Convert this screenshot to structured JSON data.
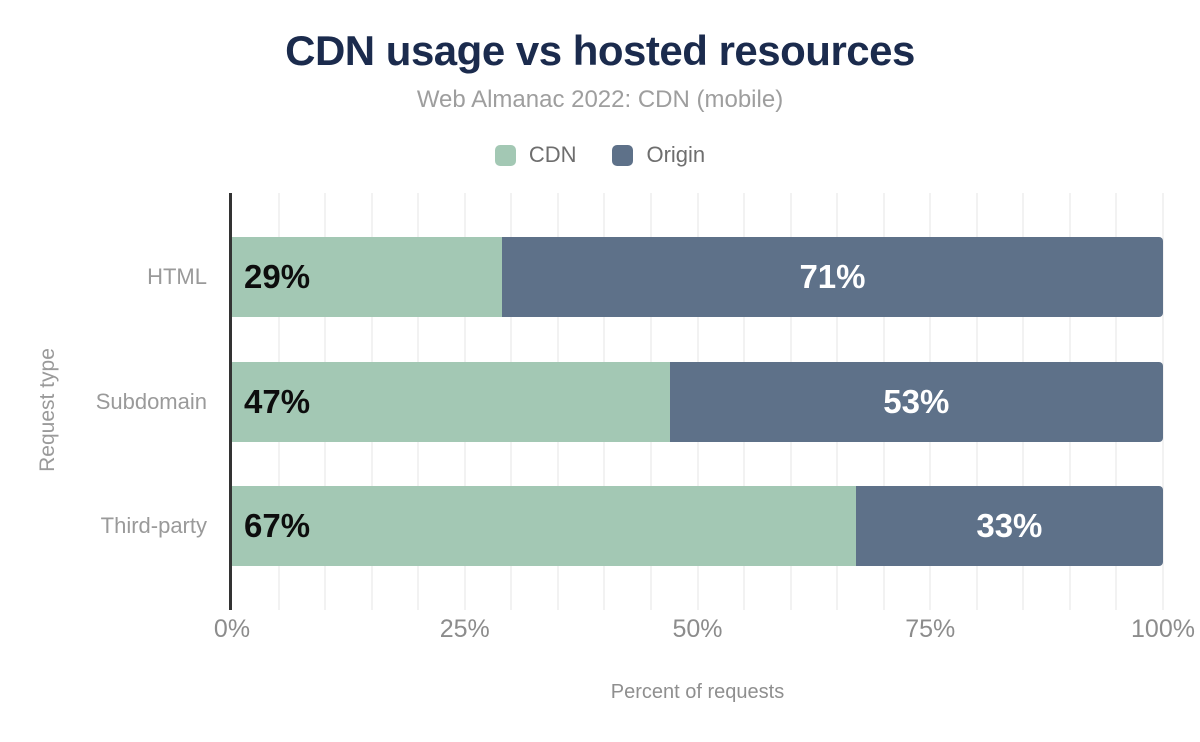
{
  "header": {
    "title": "CDN usage vs hosted resources",
    "subtitle": "Web Almanac 2022: CDN (mobile)"
  },
  "legend": {
    "position": "top",
    "items": [
      {
        "id": "cdn",
        "label": "CDN",
        "color": "#a3c8b4"
      },
      {
        "id": "origin",
        "label": "Origin",
        "color": "#5e7189"
      }
    ]
  },
  "chart_data": {
    "type": "bar",
    "orientation": "horizontal",
    "stacked": true,
    "title": "CDN usage vs hosted resources",
    "subtitle": "Web Almanac 2022: CDN (mobile)",
    "categories": [
      "HTML",
      "Subdomain",
      "Third-party"
    ],
    "series": [
      {
        "name": "CDN",
        "color": "#a3c8b4",
        "values": [
          29,
          47,
          67
        ],
        "labels": [
          "29%",
          "47%",
          "67%"
        ],
        "label_color": "#0d0d0d",
        "label_align": "left"
      },
      {
        "name": "Origin",
        "color": "#5e7189",
        "values": [
          71,
          53,
          33
        ],
        "labels": [
          "71%",
          "53%",
          "33%"
        ],
        "label_color": "#ffffff",
        "label_align": "center"
      }
    ],
    "xlabel": "Percent of requests",
    "ylabel": "Request type",
    "xlim": [
      0,
      100
    ],
    "x_ticks": [
      {
        "value": 0,
        "label": "0%"
      },
      {
        "value": 25,
        "label": "25%"
      },
      {
        "value": 50,
        "label": "50%"
      },
      {
        "value": 75,
        "label": "75%"
      },
      {
        "value": 100,
        "label": "100%"
      }
    ],
    "grid": {
      "show": true,
      "minor_step": 5,
      "color": "#f2f2f2"
    }
  },
  "colors": {
    "title": "#1b2b4d",
    "subtitle": "#9e9e9e",
    "axis_line": "#333333",
    "gridline": "#f2f2f2",
    "category_label": "#9a9a9a",
    "tick_label": "#8c8c8c",
    "axis_title": "#8f8f8f",
    "background": "#ffffff"
  }
}
